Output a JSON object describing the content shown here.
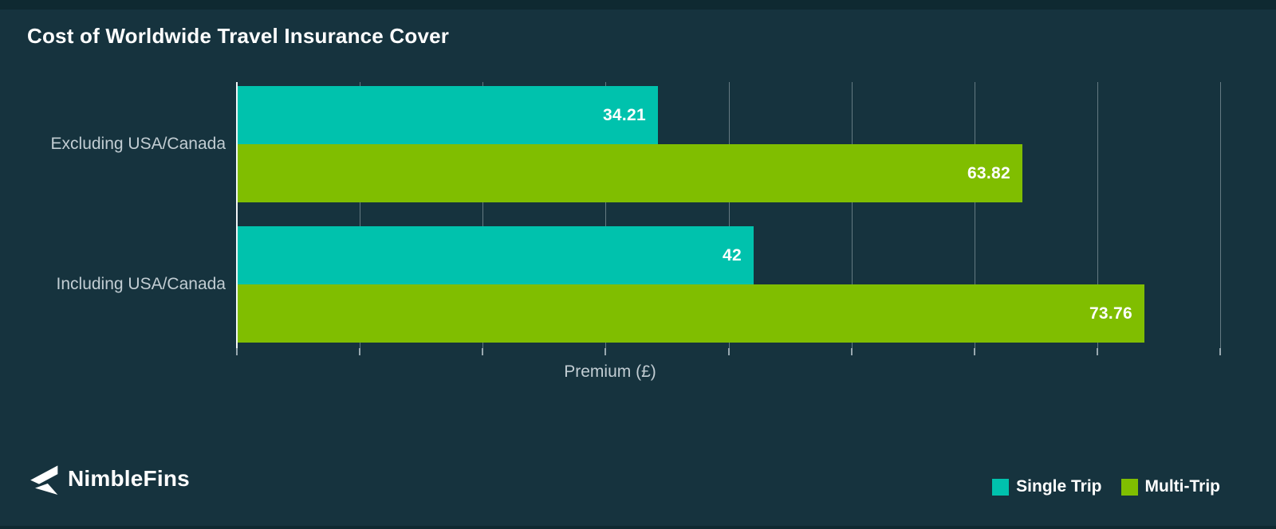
{
  "colors": {
    "background": "#16333E",
    "edge_band": "#0F2931",
    "single_trip": "#00C2AD",
    "multi_trip": "#80BE00",
    "muted_text": "#C2CDD3",
    "gridline": "rgba(196,208,213,0.45)",
    "axis": "#F2F5F7",
    "white": "#FFFFFF"
  },
  "chart_data": {
    "type": "bar",
    "orientation": "horizontal",
    "title": "Cost of Worldwide Travel Insurance Cover",
    "categories": [
      "Excluding USA/Canada",
      "Including USA/Canada"
    ],
    "series": [
      {
        "name": "Single Trip",
        "color": "#00C2AD",
        "values": [
          34.21,
          42
        ]
      },
      {
        "name": "Multi-Trip",
        "color": "#80BE00",
        "values": [
          63.82,
          73.76
        ]
      }
    ],
    "value_labels": [
      [
        "34.21",
        "42"
      ],
      [
        "63.82",
        "73.76"
      ]
    ],
    "xlabel": "Premium (£)",
    "ylabel": "",
    "xlim": [
      0,
      80
    ],
    "grid": true,
    "gridline_interval": 10,
    "tick_labels_shown": false,
    "legend_position": "bottom-right"
  },
  "branding": {
    "logo_text": "NimbleFins"
  }
}
